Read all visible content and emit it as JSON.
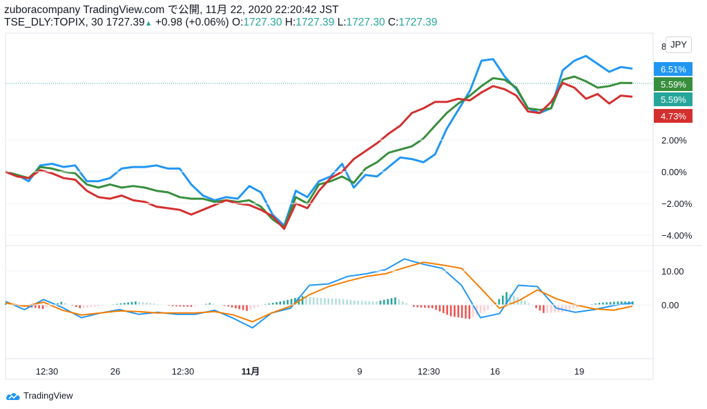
{
  "header": {
    "line1": "zuboracompany TradingView.com で公開, 11月 22, 2020 22:20:42 JST",
    "symbol": "TSE_DLY:TOPIX, 30",
    "price": "1727.39",
    "change": "+0.98 (+0.06%)",
    "open_label": "O:",
    "open": "1727.30",
    "high_label": "H:",
    "high": "1727.39",
    "low_label": "L:",
    "low": "1727.30",
    "close_label": "C:",
    "close": "1727.39"
  },
  "currency_button": "JPY",
  "top_axis_partial": "8",
  "brand": "TradingView",
  "colors": {
    "blue": "#2196f3",
    "green": "#388e3c",
    "red": "#d32f2f",
    "teal": "#26a69a",
    "orange": "#f57c00",
    "hist_up": "#26a69a",
    "hist_down": "#ef5350"
  },
  "chart_data": [
    {
      "type": "line",
      "title": "",
      "ylabel": "",
      "y_unit": "%",
      "x_tick_labels": [
        "12:30",
        "26",
        "12:30",
        "11月",
        "9",
        "12:30",
        "16",
        "19"
      ],
      "y_tick_labels": [
        "2.00%",
        "0.00%",
        "−2.00%",
        "−4.00%"
      ],
      "y_ticks": [
        2,
        0,
        -2,
        -4
      ],
      "ylim": [
        -4.5,
        8.2
      ],
      "last_value_tags": [
        {
          "text": "6.51%",
          "value": 6.51,
          "color": "#2196f3"
        },
        {
          "text": "5.59%",
          "value": 5.59,
          "color": "#388e3c"
        },
        {
          "text": "5.59%",
          "value": 5.59,
          "color": "#26a69a"
        },
        {
          "text": "4.73%",
          "value": 4.73,
          "color": "#d32f2f"
        }
      ],
      "series": [
        {
          "color": "#2196f3",
          "values": [
            0,
            -0.2,
            -0.6,
            0.4,
            0.5,
            0.3,
            0.4,
            -0.6,
            -0.6,
            -0.4,
            0.2,
            0.3,
            0.3,
            0.4,
            0.2,
            0.2,
            -0.8,
            -1.5,
            -1.8,
            -1.6,
            -1.7,
            -0.9,
            -1.3,
            -2.7,
            -3.4,
            -1.2,
            -1.6,
            -0.6,
            -0.3,
            0.5,
            -1.0,
            -0.2,
            -0.3,
            0.3,
            0.9,
            0.8,
            0.6,
            1.1,
            2.7,
            3.9,
            5.1,
            7.0,
            7.1,
            6.0,
            5.2,
            4.0,
            3.7,
            4.0,
            6.4,
            7.0,
            7.3,
            6.8,
            6.3,
            6.6,
            6.5
          ]
        },
        {
          "color": "#388e3c",
          "values": [
            0,
            -0.2,
            -0.4,
            0.3,
            0.2,
            0.0,
            -0.1,
            -0.8,
            -1.0,
            -0.8,
            -1.0,
            -0.9,
            -1.0,
            -1.2,
            -1.3,
            -1.6,
            -1.7,
            -1.7,
            -1.9,
            -1.8,
            -1.9,
            -1.8,
            -2.2,
            -3.0,
            -3.5,
            -1.6,
            -2.0,
            -0.8,
            -0.6,
            -0.3,
            -0.7,
            0.2,
            0.6,
            1.2,
            1.4,
            1.6,
            2.1,
            2.9,
            3.7,
            4.3,
            4.8,
            5.4,
            5.9,
            5.8,
            5.3,
            4.0,
            3.9,
            4.0,
            5.8,
            6.0,
            5.7,
            5.3,
            5.4,
            5.6,
            5.59
          ]
        },
        {
          "color": "#d32f2f",
          "values": [
            0,
            -0.3,
            -0.4,
            0.1,
            -0.1,
            -0.4,
            -0.5,
            -1.2,
            -1.6,
            -1.7,
            -1.5,
            -1.8,
            -1.9,
            -2.2,
            -2.3,
            -2.4,
            -2.7,
            -2.4,
            -2.1,
            -1.8,
            -2.0,
            -2.1,
            -2.4,
            -2.8,
            -3.6,
            -2.0,
            -2.3,
            -1.2,
            -0.4,
            0.0,
            0.8,
            1.3,
            1.8,
            2.4,
            2.9,
            3.7,
            4.0,
            4.4,
            4.4,
            4.6,
            4.5,
            5.0,
            5.4,
            5.2,
            4.8,
            3.8,
            3.7,
            4.4,
            5.6,
            5.3,
            4.6,
            4.9,
            4.3,
            4.8,
            4.73
          ]
        }
      ]
    },
    {
      "type": "line",
      "title": "",
      "y_tick_labels": [
        "10.00",
        "0.00"
      ],
      "y_ticks": [
        10,
        0
      ],
      "ylim": [
        -9,
        14.5
      ],
      "series": [
        {
          "color": "#2196f3",
          "values": [
            1.0,
            -1.4,
            1.6,
            -0.8,
            -3.8,
            -2.4,
            -1.4,
            -2.8,
            -2.2,
            -2.8,
            -2.8,
            -1.6,
            -4.0,
            -6.8,
            -2.4,
            -1.0,
            5.8,
            6.2,
            8.4,
            9.2,
            10.4,
            13.6,
            12.0,
            10.8,
            5.8,
            -3.8,
            -2.6,
            5.8,
            5.4,
            -1.0,
            -2.2,
            -1.4,
            -0.2,
            0.6
          ]
        },
        {
          "color": "#f57c00",
          "values": [
            0.6,
            -0.4,
            0.8,
            -1.6,
            -3.0,
            -2.4,
            -1.8,
            -2.0,
            -2.4,
            -2.4,
            -2.4,
            -2.0,
            -3.0,
            -5.0,
            -2.4,
            -0.4,
            3.0,
            5.4,
            7.0,
            8.4,
            9.2,
            11.0,
            12.6,
            11.8,
            10.8,
            5.0,
            -1.0,
            1.2,
            4.4,
            1.8,
            0.0,
            -1.2,
            -1.6,
            -0.4
          ]
        },
        {
          "name": "histogram",
          "values": [
            0.4,
            -0.5,
            -1.2,
            0.9,
            -1.0,
            -0.4,
            0.3,
            1.0,
            0.4,
            -0.4,
            -0.6,
            0.5,
            -0.5,
            -1.8,
            0.2,
            1.2,
            2.6,
            2.0,
            1.8,
            1.2,
            1.0,
            2.2,
            -0.6,
            -1.0,
            -3.4,
            -4.2,
            -1.4,
            3.8,
            1.2,
            -2.4,
            -2.2,
            -0.4,
            0.6,
            1.0
          ]
        }
      ]
    }
  ]
}
